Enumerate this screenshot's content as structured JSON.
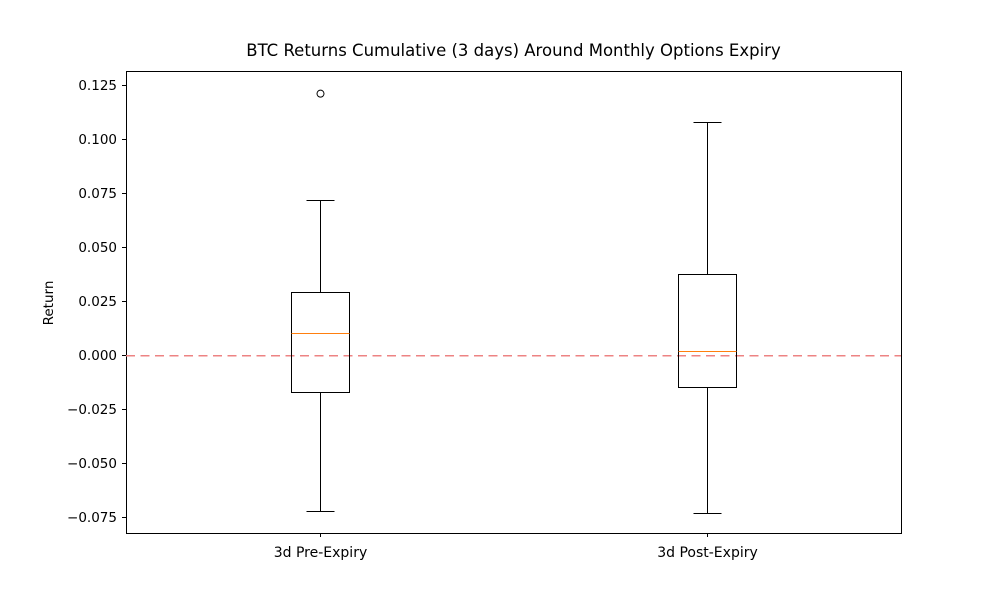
{
  "chart_data": {
    "type": "boxplot",
    "title": "BTC Returns Cumulative (3 days) Around Monthly Options Expiry",
    "xlabel": "",
    "ylabel": "Return",
    "categories": [
      "3d Pre-Expiry",
      "3d Post-Expiry"
    ],
    "series": [
      {
        "name": "3d Pre-Expiry",
        "whisker_low": -0.072,
        "q1": -0.017,
        "median": 0.01,
        "q3": 0.029,
        "whisker_high": 0.072,
        "outliers": [
          0.121
        ]
      },
      {
        "name": "3d Post-Expiry",
        "whisker_low": -0.073,
        "q1": -0.015,
        "median": 0.002,
        "q3": 0.0375,
        "whisker_high": 0.108,
        "outliers": []
      }
    ],
    "yticks": [
      0.125,
      0.1,
      0.075,
      0.05,
      0.025,
      0.0,
      -0.025,
      -0.05,
      -0.075
    ],
    "ytick_labels": [
      "0.125",
      "0.100",
      "0.075",
      "0.050",
      "0.025",
      "0.000",
      "−0.025",
      "−0.050",
      "−0.075"
    ],
    "ylim": [
      -0.0824,
      0.1315
    ],
    "grid": false,
    "legend_position": "none",
    "reference_line": {
      "y": 0.0,
      "linestyle": "dashed",
      "color": "#ed8383"
    },
    "colors": {
      "box_edge": "#000000",
      "median": "#ff7f0e",
      "flier_edge": "#000000",
      "axis": "#000000",
      "background": "#ffffff"
    }
  }
}
